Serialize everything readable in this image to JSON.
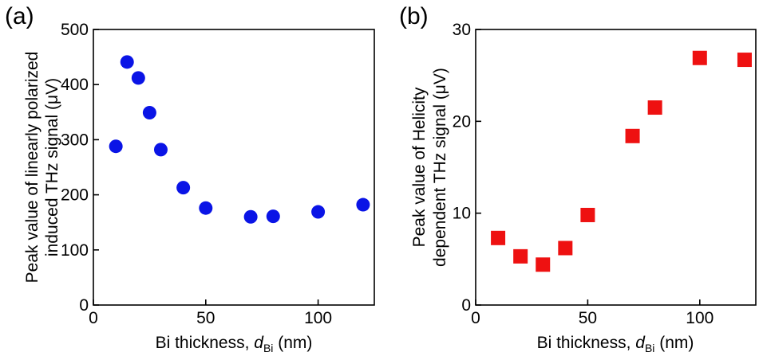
{
  "chart_data": [
    {
      "panel_label": "(a)",
      "type": "scatter",
      "marker": "circle",
      "color": "#0a14e6",
      "xlabel_parts": [
        "Bi thickness, ",
        "d",
        "Bi",
        " (nm)"
      ],
      "ylabel_lines": [
        "Peak value of linearly polarized",
        "induced THz signal (μV)"
      ],
      "xlim": [
        0,
        125
      ],
      "ylim": [
        0,
        500
      ],
      "xticks": [
        0,
        50,
        100
      ],
      "xtick_labels": [
        "0",
        "50",
        "100"
      ],
      "yticks": [
        0,
        100,
        200,
        300,
        400,
        500
      ],
      "ytick_labels": [
        "0",
        "100",
        "200",
        "300",
        "400",
        "500"
      ],
      "x": [
        10,
        15,
        20,
        25,
        30,
        40,
        50,
        70,
        80,
        100,
        120
      ],
      "y": [
        288,
        441,
        412,
        349,
        282,
        213,
        176,
        160,
        161,
        169,
        182
      ]
    },
    {
      "panel_label": "(b)",
      "type": "scatter",
      "marker": "square",
      "color": "#ee1111",
      "xlabel_parts": [
        "Bi thickness, ",
        "d",
        "Bi",
        " (nm)"
      ],
      "ylabel_lines": [
        "Peak value of Helicity",
        "dependent THz signal (μV)"
      ],
      "xlim": [
        0,
        125
      ],
      "ylim": [
        0,
        30
      ],
      "xticks": [
        0,
        50,
        100
      ],
      "xtick_labels": [
        "0",
        "50",
        "100"
      ],
      "yticks": [
        0,
        10,
        20,
        30
      ],
      "ytick_labels": [
        "0",
        "10",
        "20",
        "30"
      ],
      "x": [
        10,
        20,
        30,
        40,
        50,
        70,
        80,
        100,
        120
      ],
      "y": [
        7.3,
        5.3,
        4.4,
        6.2,
        9.8,
        18.4,
        21.5,
        26.9,
        26.7
      ]
    }
  ]
}
